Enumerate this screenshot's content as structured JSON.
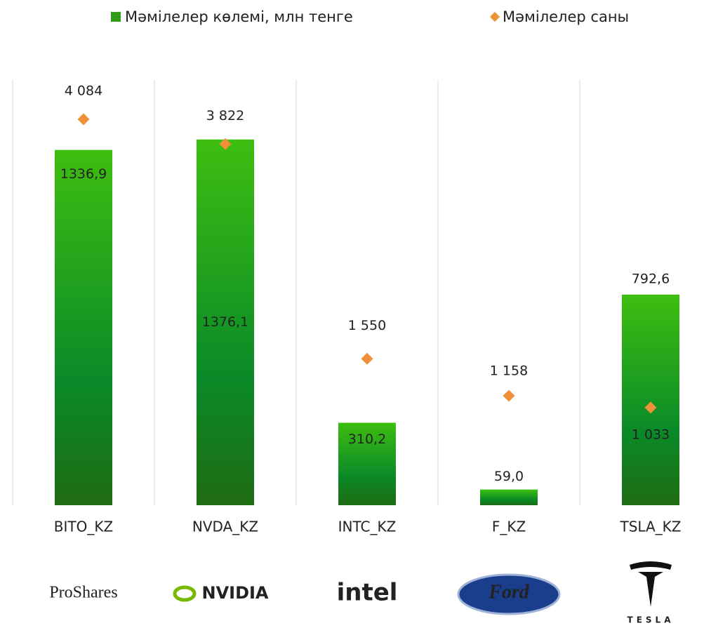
{
  "chart_data": {
    "type": "bar",
    "categories": [
      "BITO_KZ",
      "NVDA_KZ",
      "INTC_KZ",
      "F_KZ",
      "TSLA_KZ"
    ],
    "series": [
      {
        "name": "Мәмілелер көлемі, млн тенге",
        "type": "bar",
        "color": "#2e9e1a",
        "values": [
          1336.9,
          1376.1,
          310.2,
          59.0,
          792.6
        ],
        "value_labels": [
          "1336,9",
          "1376,1",
          "310,2",
          "59,0",
          "792,6"
        ]
      },
      {
        "name": "Мәмілелер саны",
        "type": "scatter",
        "axis": "y2",
        "color": "#f0913a",
        "values": [
          4084,
          3822,
          1550,
          1158,
          1033
        ],
        "value_labels": [
          "4 084",
          "3 822",
          "1 550",
          "1 158",
          "1 033"
        ]
      }
    ],
    "ylim": [
      0,
      1600
    ],
    "y2lim": [
      0,
      4500
    ],
    "logos": [
      "ProShares",
      "NVIDIA",
      "intel",
      "Ford",
      "TESLA"
    ]
  }
}
